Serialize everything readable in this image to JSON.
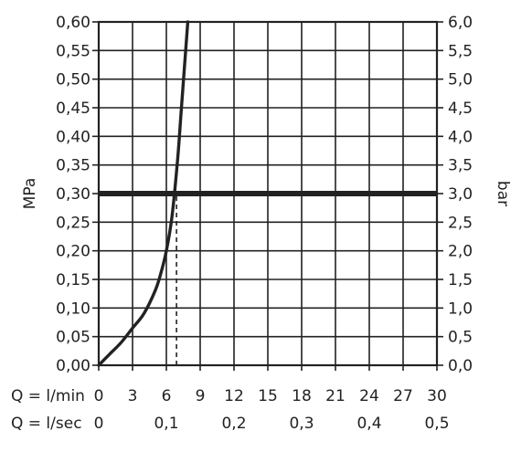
{
  "chart_data": {
    "type": "line",
    "x_axis_primary": {
      "label": "Q = l/min",
      "ticks": [
        "0",
        "3",
        "6",
        "9",
        "12",
        "15",
        "18",
        "21",
        "24",
        "27",
        "30"
      ],
      "range": [
        0,
        30
      ]
    },
    "x_axis_secondary": {
      "label": "Q = l/sec",
      "ticks": [
        "0",
        "0,1",
        "0,2",
        "0,3",
        "0,4",
        "0,5"
      ],
      "range": [
        0,
        0.5
      ]
    },
    "y_axis_left": {
      "label": "MPa",
      "ticks": [
        "0,00",
        "0,05",
        "0,10",
        "0,15",
        "0,20",
        "0,25",
        "0,30",
        "0,35",
        "0,40",
        "0,45",
        "0,50",
        "0,55",
        "0,60"
      ],
      "range": [
        0,
        0.6
      ]
    },
    "y_axis_right": {
      "label": "bar",
      "ticks": [
        "0,0",
        "0,5",
        "1,0",
        "1,5",
        "2,0",
        "2,5",
        "3,0",
        "3,5",
        "4,0",
        "4,5",
        "5,0",
        "5,5",
        "6,0"
      ],
      "range": [
        0,
        6
      ]
    },
    "grid": true,
    "series": [
      {
        "x": [
          0,
          1,
          2,
          3,
          4,
          5,
          5.5,
          6,
          6.5,
          7,
          7.3,
          7.6,
          7.9
        ],
        "y": [
          0,
          0.02,
          0.04,
          0.065,
          0.09,
          0.13,
          0.16,
          0.2,
          0.26,
          0.36,
          0.44,
          0.52,
          0.6
        ]
      }
    ],
    "reference_line": {
      "y": 0.3
    },
    "marker_line": {
      "x": 6.9,
      "y_from": 0,
      "y_to": 0.3,
      "style": "dashed"
    }
  }
}
